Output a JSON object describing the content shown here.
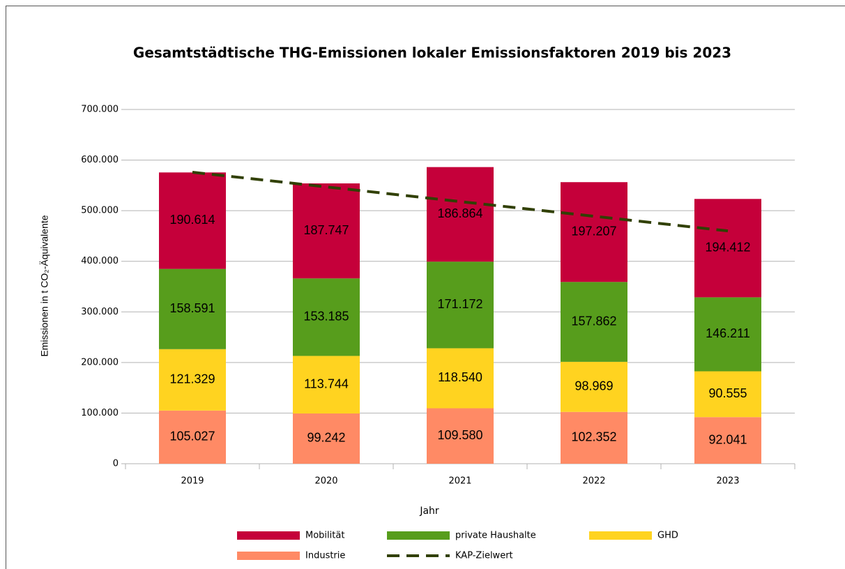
{
  "chart_data": {
    "type": "bar",
    "stacked": true,
    "title": "Gesamtstädtische THG-Emissionen lokaler Emissionsfaktoren 2019 bis 2023",
    "x_label": "Jahr",
    "y_label": "Emissionen in t CO₂-Äquivalente",
    "categories": [
      "2019",
      "2020",
      "2021",
      "2022",
      "2023"
    ],
    "series": [
      {
        "name": "Industrie",
        "color": "#ff8a65",
        "values": [
          105027,
          99242,
          109580,
          102352,
          92041
        ],
        "value_labels": [
          "105.027",
          "99.242",
          "109.580",
          "102.352",
          "92.041"
        ]
      },
      {
        "name": "GHD",
        "color": "#ffd320",
        "values": [
          121329,
          113744,
          118540,
          98969,
          90555
        ],
        "value_labels": [
          "121.329",
          "113.744",
          "118.540",
          "98.969",
          "90.555"
        ]
      },
      {
        "name": "private Haushalte",
        "color": "#579d1c",
        "values": [
          158591,
          153185,
          171172,
          157862,
          146211
        ],
        "value_labels": [
          "158.591",
          "153.185",
          "171.172",
          "157.862",
          "146.211"
        ]
      },
      {
        "name": "Mobilität",
        "color": "#c5003a",
        "values": [
          190614,
          187747,
          186864,
          197207,
          194412
        ],
        "value_labels": [
          "190.614",
          "187.747",
          "186.864",
          "197.207",
          "194.412"
        ]
      },
      {
        "name": "KAP-Zielwert",
        "type": "line",
        "color": "#314004",
        "values": [
          576000,
          547000,
          518000,
          489000,
          460000
        ]
      }
    ],
    "ylim": [
      0,
      700000
    ],
    "yticks": [
      0,
      {
        "value": 100000,
        "label": "100.000"
      },
      {
        "value": 200000,
        "label": "200.000"
      },
      {
        "value": 300000,
        "label": "300.000"
      },
      {
        "value": 400000,
        "label": "400.000"
      },
      {
        "value": 500000,
        "label": "500.000"
      },
      {
        "value": 600000,
        "label": "600.000"
      },
      {
        "value": 700000,
        "label": "700.000"
      }
    ],
    "grid": true
  }
}
